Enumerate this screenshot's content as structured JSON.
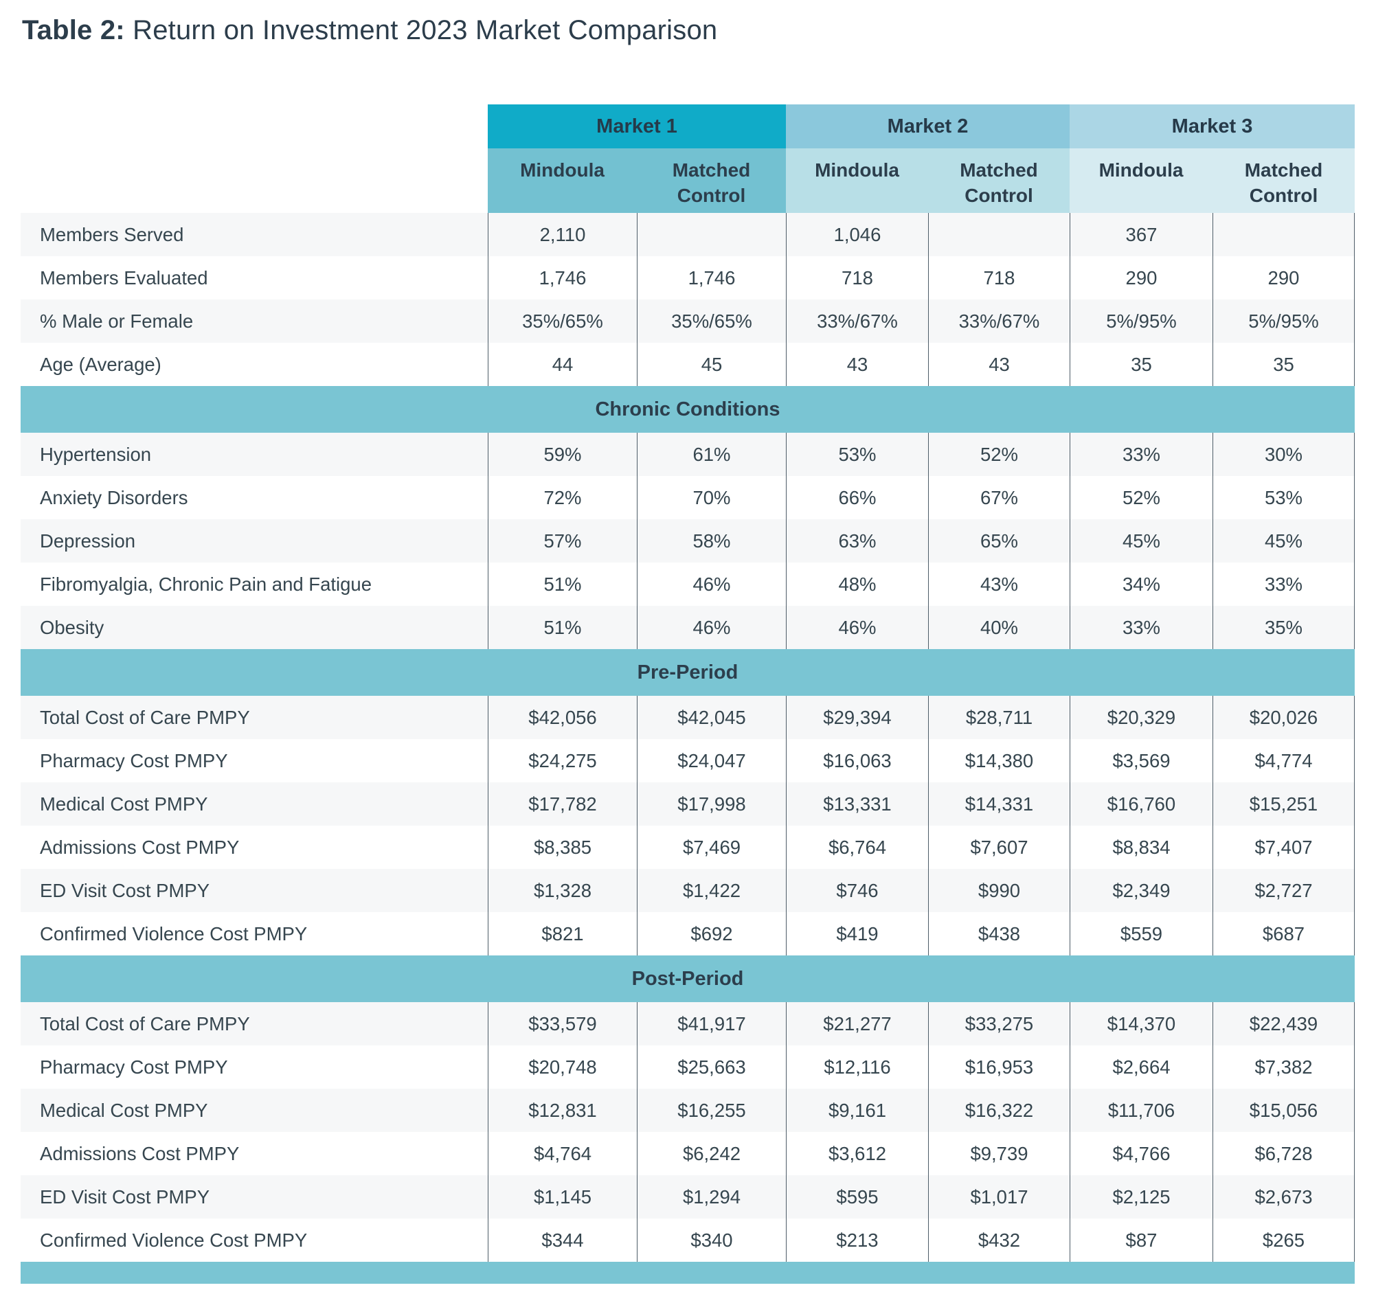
{
  "title": {
    "prefix": "Table 2:",
    "text": "Return on Investment 2023 Market Comparison"
  },
  "markets": [
    {
      "label": "Market 1",
      "subcols": [
        "Mindoula",
        "Matched Control"
      ]
    },
    {
      "label": "Market 2",
      "subcols": [
        "Mindoula",
        "Matched Control"
      ]
    },
    {
      "label": "Market 3",
      "subcols": [
        "Mindoula",
        "Matched Control"
      ]
    }
  ],
  "sections": [
    {
      "header": null,
      "rows": [
        {
          "label": "Members Served",
          "values": [
            "2,110",
            "",
            "1,046",
            "",
            "367",
            ""
          ]
        },
        {
          "label": "Members Evaluated",
          "values": [
            "1,746",
            "1,746",
            "718",
            "718",
            "290",
            "290"
          ]
        },
        {
          "label": "% Male or Female",
          "values": [
            "35%/65%",
            "35%/65%",
            "33%/67%",
            "33%/67%",
            "5%/95%",
            "5%/95%"
          ]
        },
        {
          "label": "Age (Average)",
          "values": [
            "44",
            "45",
            "43",
            "43",
            "35",
            "35"
          ]
        }
      ]
    },
    {
      "header": "Chronic Conditions",
      "rows": [
        {
          "label": "Hypertension",
          "values": [
            "59%",
            "61%",
            "53%",
            "52%",
            "33%",
            "30%"
          ]
        },
        {
          "label": "Anxiety Disorders",
          "values": [
            "72%",
            "70%",
            "66%",
            "67%",
            "52%",
            "53%"
          ]
        },
        {
          "label": "Depression",
          "values": [
            "57%",
            "58%",
            "63%",
            "65%",
            "45%",
            "45%"
          ]
        },
        {
          "label": "Fibromyalgia, Chronic Pain and Fatigue",
          "values": [
            "51%",
            "46%",
            "48%",
            "43%",
            "34%",
            "33%"
          ]
        },
        {
          "label": "Obesity",
          "values": [
            "51%",
            "46%",
            "46%",
            "40%",
            "33%",
            "35%"
          ]
        }
      ]
    },
    {
      "header": "Pre-Period",
      "rows": [
        {
          "label": "Total Cost of Care PMPY",
          "values": [
            "$42,056",
            "$42,045",
            "$29,394",
            "$28,711",
            "$20,329",
            "$20,026"
          ]
        },
        {
          "label": "Pharmacy Cost PMPY",
          "values": [
            "$24,275",
            "$24,047",
            "$16,063",
            "$14,380",
            "$3,569",
            "$4,774"
          ]
        },
        {
          "label": "Medical Cost PMPY",
          "values": [
            "$17,782",
            "$17,998",
            "$13,331",
            "$14,331",
            "$16,760",
            "$15,251"
          ]
        },
        {
          "label": "Admissions Cost PMPY",
          "values": [
            "$8,385",
            "$7,469",
            "$6,764",
            "$7,607",
            "$8,834",
            "$7,407"
          ]
        },
        {
          "label": "ED Visit Cost PMPY",
          "values": [
            "$1,328",
            "$1,422",
            "$746",
            "$990",
            "$2,349",
            "$2,727"
          ]
        },
        {
          "label": "Confirmed Violence Cost PMPY",
          "values": [
            "$821",
            "$692",
            "$419",
            "$438",
            "$559",
            "$687"
          ]
        }
      ]
    },
    {
      "header": "Post-Period",
      "rows": [
        {
          "label": "Total Cost of Care PMPY",
          "values": [
            "$33,579",
            "$41,917",
            "$21,277",
            "$33,275",
            "$14,370",
            "$22,439"
          ]
        },
        {
          "label": "Pharmacy Cost PMPY",
          "values": [
            "$20,748",
            "$25,663",
            "$12,116",
            "$16,953",
            "$2,664",
            "$7,382"
          ]
        },
        {
          "label": "Medical Cost PMPY",
          "values": [
            "$12,831",
            "$16,255",
            "$9,161",
            "$16,322",
            "$11,706",
            "$15,056"
          ]
        },
        {
          "label": "Admissions Cost PMPY",
          "values": [
            "$4,764",
            "$6,242",
            "$3,612",
            "$9,739",
            "$4,766",
            "$6,728"
          ]
        },
        {
          "label": "ED Visit Cost PMPY",
          "values": [
            "$1,145",
            "$1,294",
            "$595",
            "$1,017",
            "$2,125",
            "$2,673"
          ]
        },
        {
          "label": "Confirmed Violence Cost PMPY",
          "values": [
            "$344",
            "$340",
            "$213",
            "$432",
            "$87",
            "$265"
          ]
        }
      ]
    }
  ],
  "colors": {
    "market1_header": "#10abc8",
    "market2_header": "#8bc8dc",
    "market3_header": "#abd6e5",
    "market1_subheader": "#73c1d1",
    "market2_subheader": "#b8dfe7",
    "market3_subheader": "#d6ebf1",
    "section_bar": "#7ac5d3",
    "alt_row": "#f6f7f8",
    "text": "#2c3d4b",
    "grid_line": "#4e5d68"
  }
}
